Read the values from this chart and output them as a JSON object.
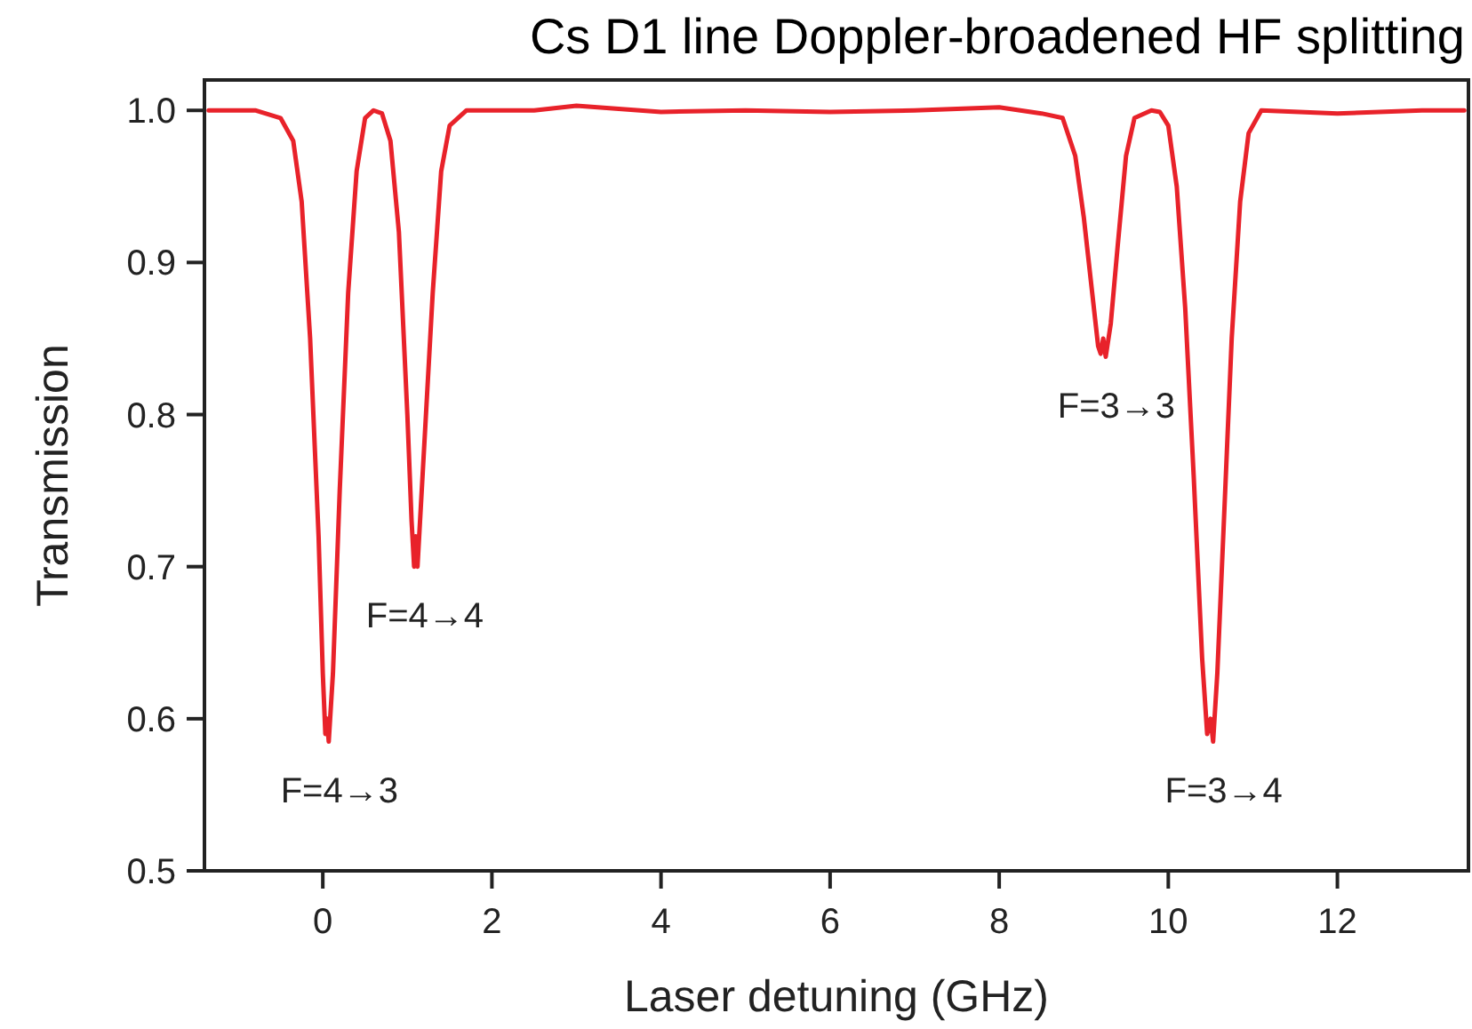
{
  "chart_data": {
    "type": "line",
    "title": "Cs D1 line Doppler-broadened HF splitting",
    "xlabel": "Laser detuning (GHz)",
    "ylabel": "Transmission",
    "xlim": [
      -1.4,
      13.55
    ],
    "ylim": [
      0.5,
      1.02
    ],
    "xticks": [
      0,
      2,
      4,
      6,
      8,
      10,
      12
    ],
    "yticks": [
      0.5,
      0.6,
      0.7,
      0.8,
      0.9,
      {
        "value": 1,
        "label": "1.0"
      }
    ],
    "grid": false,
    "marker": "none",
    "line_style": "solid",
    "series": [
      {
        "color": "#e8222a",
        "x": [
          -1.35,
          -0.8,
          -0.5,
          -0.35,
          -0.25,
          -0.15,
          -0.05,
          0.0,
          0.03,
          0.05,
          0.07,
          0.12,
          0.2,
          0.3,
          0.4,
          0.5,
          0.6,
          0.7,
          0.8,
          0.9,
          1.0,
          1.05,
          1.08,
          1.1,
          1.12,
          1.18,
          1.3,
          1.4,
          1.5,
          1.7,
          2.5,
          3,
          4,
          5,
          6,
          7,
          8,
          8.5,
          8.75,
          8.9,
          9.0,
          9.1,
          9.17,
          9.2,
          9.23,
          9.26,
          9.32,
          9.4,
          9.5,
          9.6,
          9.8,
          9.9,
          10.0,
          10.1,
          10.2,
          10.3,
          10.4,
          10.46,
          10.5,
          10.53,
          10.58,
          10.65,
          10.75,
          10.85,
          10.95,
          11.1,
          12,
          13,
          13.5
        ],
        "values": [
          1.0,
          1.0,
          0.995,
          0.98,
          0.94,
          0.85,
          0.72,
          0.63,
          0.59,
          0.6,
          0.585,
          0.63,
          0.75,
          0.88,
          0.96,
          0.995,
          1.0,
          0.998,
          0.98,
          0.92,
          0.8,
          0.73,
          0.7,
          0.72,
          0.7,
          0.76,
          0.88,
          0.96,
          0.99,
          1.0,
          1.0,
          1.003,
          0.999,
          1.0,
          0.999,
          1.0,
          1.002,
          0.998,
          0.995,
          0.97,
          0.93,
          0.88,
          0.845,
          0.84,
          0.85,
          0.838,
          0.86,
          0.91,
          0.97,
          0.995,
          1.0,
          0.999,
          0.99,
          0.95,
          0.87,
          0.76,
          0.64,
          0.59,
          0.6,
          0.585,
          0.63,
          0.72,
          0.85,
          0.94,
          0.985,
          1.0,
          0.998,
          1.0,
          1.0
        ]
      }
    ],
    "annotations": [
      {
        "text": "F=4→3",
        "x": 0.07,
        "y": 0.585
      },
      {
        "text": "F=4→4",
        "x": 1.08,
        "y": 0.7
      },
      {
        "text": "F=3→3",
        "x": 9.26,
        "y": 0.838
      },
      {
        "text": "F=3→4",
        "x": 10.53,
        "y": 0.585
      }
    ]
  }
}
